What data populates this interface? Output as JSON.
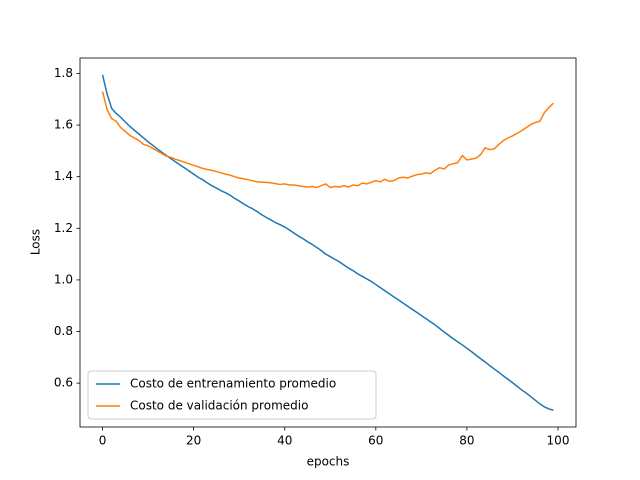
{
  "chart_data": {
    "type": "line",
    "xlabel": "epochs",
    "ylabel": "Loss",
    "x": [
      0,
      1,
      2,
      3,
      4,
      5,
      6,
      7,
      8,
      9,
      10,
      11,
      12,
      13,
      14,
      15,
      16,
      17,
      18,
      19,
      20,
      21,
      22,
      23,
      24,
      25,
      26,
      27,
      28,
      29,
      30,
      31,
      32,
      33,
      34,
      35,
      36,
      37,
      38,
      39,
      40,
      41,
      42,
      43,
      44,
      45,
      46,
      47,
      48,
      49,
      50,
      51,
      52,
      53,
      54,
      55,
      56,
      57,
      58,
      59,
      60,
      61,
      62,
      63,
      64,
      65,
      66,
      67,
      68,
      69,
      70,
      71,
      72,
      73,
      74,
      75,
      76,
      77,
      78,
      79,
      80,
      81,
      82,
      83,
      84,
      85,
      86,
      87,
      88,
      89,
      90,
      91,
      92,
      93,
      94,
      95,
      96,
      97,
      98,
      99
    ],
    "series": [
      {
        "name": "Costo de entrenamiento promedio",
        "color": "#1f77b4",
        "values": [
          1.795,
          1.72,
          1.665,
          1.645,
          1.63,
          1.612,
          1.595,
          1.58,
          1.565,
          1.55,
          1.535,
          1.522,
          1.508,
          1.495,
          1.482,
          1.47,
          1.458,
          1.446,
          1.434,
          1.422,
          1.41,
          1.398,
          1.388,
          1.376,
          1.365,
          1.356,
          1.346,
          1.338,
          1.328,
          1.316,
          1.306,
          1.294,
          1.284,
          1.275,
          1.264,
          1.252,
          1.242,
          1.232,
          1.222,
          1.214,
          1.205,
          1.194,
          1.182,
          1.17,
          1.16,
          1.148,
          1.138,
          1.126,
          1.114,
          1.1,
          1.09,
          1.08,
          1.07,
          1.058,
          1.046,
          1.036,
          1.024,
          1.014,
          1.004,
          0.994,
          0.982,
          0.97,
          0.958,
          0.946,
          0.934,
          0.922,
          0.91,
          0.898,
          0.886,
          0.874,
          0.862,
          0.85,
          0.838,
          0.826,
          0.812,
          0.798,
          0.785,
          0.772,
          0.76,
          0.748,
          0.735,
          0.722,
          0.708,
          0.695,
          0.682,
          0.668,
          0.655,
          0.642,
          0.628,
          0.615,
          0.602,
          0.588,
          0.574,
          0.562,
          0.548,
          0.534,
          0.52,
          0.508,
          0.5,
          0.495
        ]
      },
      {
        "name": "Costo de validación promedio",
        "color": "#ff7f0e",
        "values": [
          1.73,
          1.66,
          1.625,
          1.615,
          1.59,
          1.575,
          1.56,
          1.55,
          1.54,
          1.525,
          1.52,
          1.51,
          1.5,
          1.49,
          1.48,
          1.475,
          1.468,
          1.462,
          1.456,
          1.45,
          1.444,
          1.438,
          1.432,
          1.428,
          1.425,
          1.42,
          1.415,
          1.41,
          1.406,
          1.4,
          1.395,
          1.392,
          1.388,
          1.384,
          1.38,
          1.379,
          1.378,
          1.376,
          1.373,
          1.37,
          1.372,
          1.368,
          1.368,
          1.365,
          1.362,
          1.36,
          1.362,
          1.358,
          1.365,
          1.372,
          1.358,
          1.362,
          1.36,
          1.365,
          1.36,
          1.368,
          1.365,
          1.375,
          1.372,
          1.378,
          1.385,
          1.38,
          1.39,
          1.382,
          1.385,
          1.395,
          1.398,
          1.395,
          1.402,
          1.408,
          1.41,
          1.415,
          1.412,
          1.425,
          1.435,
          1.43,
          1.445,
          1.45,
          1.455,
          1.482,
          1.465,
          1.468,
          1.472,
          1.485,
          1.512,
          1.505,
          1.508,
          1.525,
          1.54,
          1.55,
          1.558,
          1.568,
          1.578,
          1.59,
          1.602,
          1.61,
          1.615,
          1.648,
          1.668,
          1.685
        ]
      }
    ],
    "xlim": [
      -4.95,
      103.95
    ],
    "xticks": [
      0,
      20,
      40,
      60,
      80,
      100
    ],
    "ylim": [
      0.43,
      1.86
    ],
    "yticks": [
      0.6,
      0.8,
      {
        "value": 1,
        "label": "1.0"
      },
      1.2,
      1.4,
      1.6,
      1.8
    ],
    "grid": false,
    "legend": "lower left"
  }
}
